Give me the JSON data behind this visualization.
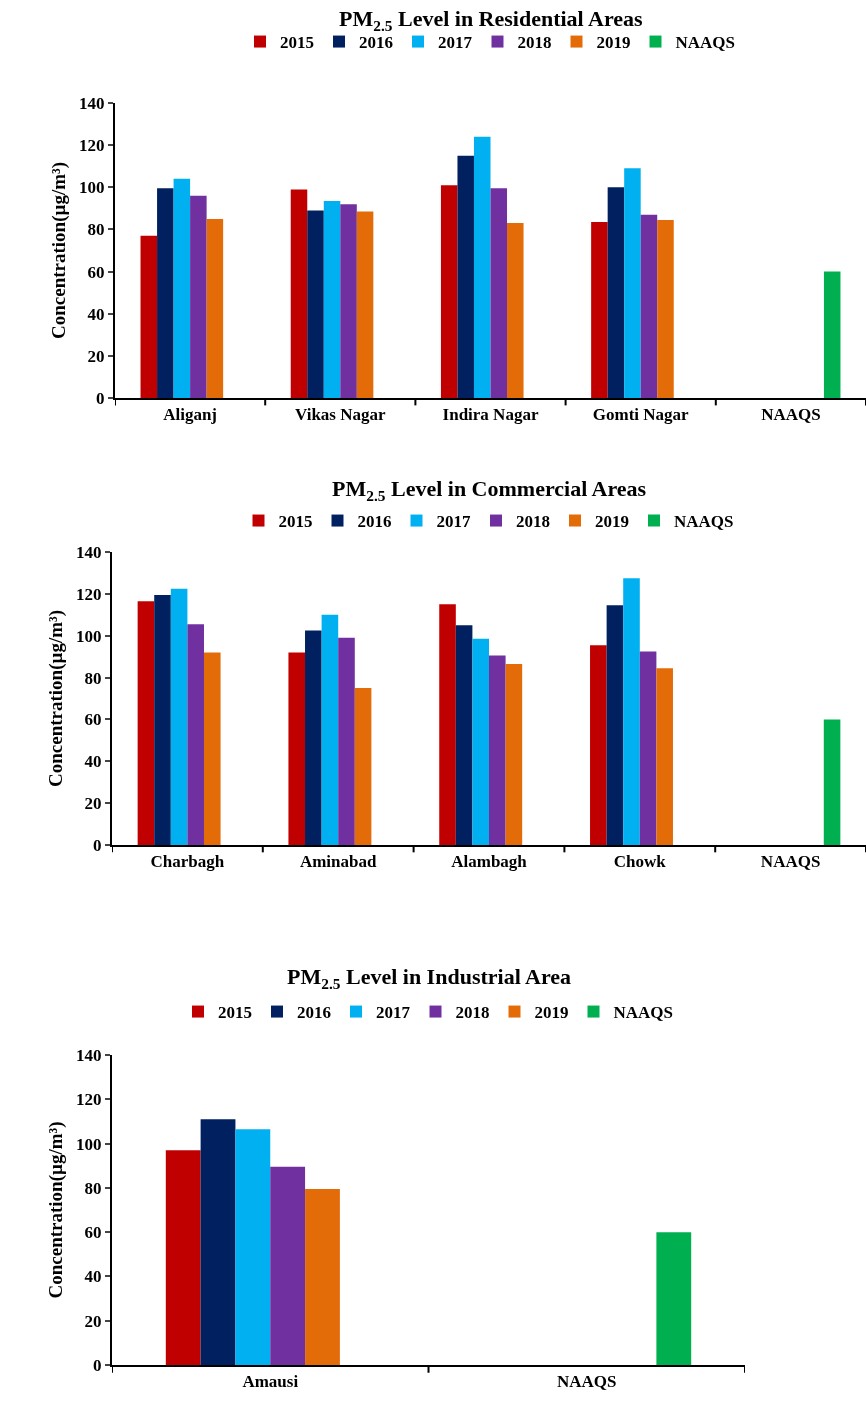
{
  "chart_data": [
    {
      "type": "bar",
      "title": "PM$_{2.5}$ Level in Residential Areas",
      "ylabel": "Concentration(µg/m³)",
      "categories": [
        "Aliganj",
        "Vikas Nagar",
        "Indira Nagar",
        "Gomti Nagar",
        "NAAQS"
      ],
      "ylim": [
        0,
        140
      ],
      "yticks": [
        0,
        20,
        40,
        60,
        80,
        100,
        120,
        140
      ],
      "legend": "top",
      "series": [
        {
          "name": "2015",
          "color": "#c00000",
          "values": [
            77,
            99,
            101,
            83.5,
            null
          ]
        },
        {
          "name": "2016",
          "color": "#002060",
          "values": [
            99.5,
            89,
            115,
            100,
            null
          ]
        },
        {
          "name": "2017",
          "color": "#00b0f0",
          "values": [
            104,
            93.5,
            124,
            109,
            null
          ]
        },
        {
          "name": "2018",
          "color": "#7030a0",
          "values": [
            96,
            92,
            99.5,
            87,
            null
          ]
        },
        {
          "name": "2019",
          "color": "#e36c09",
          "values": [
            85,
            88.5,
            83,
            84.5,
            null
          ]
        },
        {
          "name": "NAAQS",
          "color": "#00b050",
          "values": [
            null,
            null,
            null,
            null,
            60
          ]
        }
      ]
    },
    {
      "type": "bar",
      "title": "PM$_{2.5}$ Level in Commercial Areas",
      "ylabel": "Concentration(µg/m³)",
      "categories": [
        "Charbagh",
        "Aminabad",
        "Alambagh",
        "Chowk",
        "NAAQS"
      ],
      "ylim": [
        0,
        140
      ],
      "yticks": [
        0,
        20,
        40,
        60,
        80,
        100,
        120,
        140
      ],
      "legend": "top",
      "series": [
        {
          "name": "2015",
          "color": "#c00000",
          "values": [
            116.5,
            92,
            115,
            95.5,
            null
          ]
        },
        {
          "name": "2016",
          "color": "#002060",
          "values": [
            119.5,
            102.5,
            105,
            114.5,
            null
          ]
        },
        {
          "name": "2017",
          "color": "#00b0f0",
          "values": [
            122.5,
            110,
            98.5,
            127.5,
            null
          ]
        },
        {
          "name": "2018",
          "color": "#7030a0",
          "values": [
            105.5,
            99,
            90.5,
            92.5,
            null
          ]
        },
        {
          "name": "2019",
          "color": "#e36c09",
          "values": [
            92,
            75,
            86.5,
            84.5,
            null
          ]
        },
        {
          "name": "NAAQS",
          "color": "#00b050",
          "values": [
            null,
            null,
            null,
            null,
            60
          ]
        }
      ]
    },
    {
      "type": "bar",
      "title": "PM$_{2.5}$ Level in Industrial Area",
      "ylabel": "Concentration(µg/m³)",
      "categories": [
        "Amausi",
        "NAAQS"
      ],
      "ylim": [
        0,
        140
      ],
      "yticks": [
        0,
        20,
        40,
        60,
        80,
        100,
        120,
        140
      ],
      "legend": "top",
      "series": [
        {
          "name": "2015",
          "color": "#c00000",
          "values": [
            97,
            null
          ]
        },
        {
          "name": "2016",
          "color": "#002060",
          "values": [
            111,
            null
          ]
        },
        {
          "name": "2017",
          "color": "#00b0f0",
          "values": [
            106.5,
            null
          ]
        },
        {
          "name": "2018",
          "color": "#7030a0",
          "values": [
            89.5,
            null
          ]
        },
        {
          "name": "2019",
          "color": "#e36c09",
          "values": [
            79.5,
            null
          ]
        },
        {
          "name": "NAAQS",
          "color": "#00b050",
          "values": [
            null,
            60
          ]
        }
      ]
    }
  ]
}
